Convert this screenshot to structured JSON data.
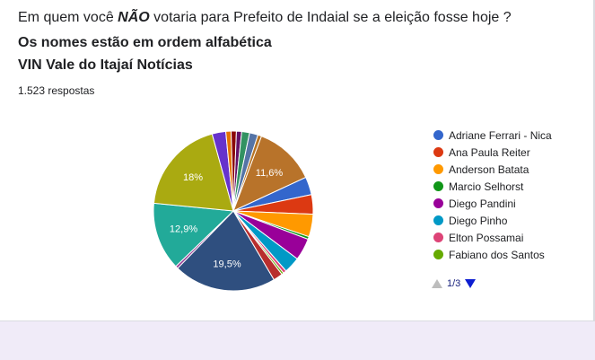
{
  "question": {
    "title_before": "Em quem você ",
    "title_emph": "NÃO",
    "title_after": " votaria para Prefeito de Indaial se a eleição fosse hoje ?",
    "subtitle1": "Os nomes estão em ordem alfabética",
    "subtitle2": "VIN Vale do Itajaí Notícias",
    "responses": "1.523 respostas"
  },
  "legend": {
    "items": [
      {
        "label": "Adriane Ferrari - Nica",
        "color": "#3366cc"
      },
      {
        "label": "Ana Paula Reiter",
        "color": "#dc3912"
      },
      {
        "label": "Anderson Batata",
        "color": "#ff9900"
      },
      {
        "label": "Marcio Selhorst",
        "color": "#109618"
      },
      {
        "label": "Diego Pandini",
        "color": "#990099"
      },
      {
        "label": "Diego Pinho",
        "color": "#0099c6"
      },
      {
        "label": "Elton Possamai",
        "color": "#dd4477"
      },
      {
        "label": "Fabiano dos Santos",
        "color": "#66aa00"
      }
    ],
    "page": "1/3"
  },
  "chart_data": {
    "type": "pie",
    "slices": [
      {
        "value": 11.6,
        "label": "11,6%",
        "color": "#b8732a"
      },
      {
        "value": 3.4,
        "label": "",
        "color": "#3366cc"
      },
      {
        "value": 3.7,
        "label": "",
        "color": "#dc3912"
      },
      {
        "value": 4.3,
        "label": "",
        "color": "#ff9900"
      },
      {
        "value": 0.5,
        "label": "",
        "color": "#109618"
      },
      {
        "value": 4.2,
        "label": "",
        "color": "#990099"
      },
      {
        "value": 3.1,
        "label": "",
        "color": "#0099c6"
      },
      {
        "value": 0.6,
        "label": "",
        "color": "#dd4477"
      },
      {
        "value": 0.4,
        "label": "",
        "color": "#66aa00"
      },
      {
        "value": 1.8,
        "label": "",
        "color": "#b82e2e"
      },
      {
        "value": 19.5,
        "label": "19,5%",
        "color": "#2f4f7f"
      },
      {
        "value": 0.5,
        "label": "",
        "color": "#994499"
      },
      {
        "value": 12.9,
        "label": "12,9%",
        "color": "#22aa99"
      },
      {
        "value": 18,
        "label": "18%",
        "color": "#aaaa11"
      },
      {
        "value": 2.6,
        "label": "",
        "color": "#6633cc"
      },
      {
        "value": 1.0,
        "label": "",
        "color": "#e67300"
      },
      {
        "value": 1.0,
        "label": "",
        "color": "#8b0707"
      },
      {
        "value": 1.0,
        "label": "",
        "color": "#651067"
      },
      {
        "value": 1.5,
        "label": "",
        "color": "#329262"
      },
      {
        "value": 1.6,
        "label": "",
        "color": "#5574a6"
      },
      {
        "value": 0.7,
        "label": "",
        "color": "#b77322"
      }
    ]
  }
}
